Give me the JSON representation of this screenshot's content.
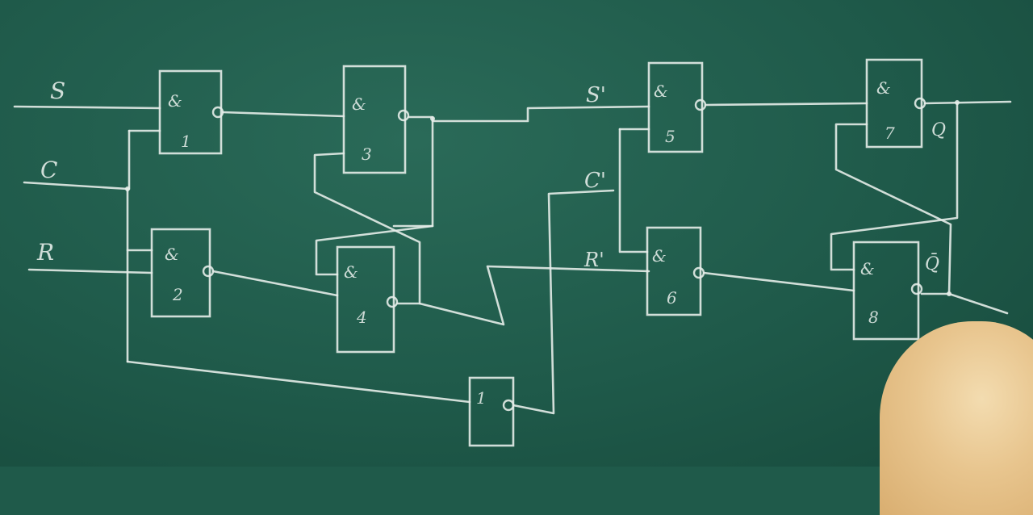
{
  "inputs": {
    "s": "S",
    "c": "C",
    "r": "R"
  },
  "internal": {
    "s_prime": "S'",
    "c_prime": "C'",
    "r_prime": "R'"
  },
  "outputs": {
    "q": "Q",
    "q_bar": "Q̄"
  },
  "gates": [
    {
      "id": "1",
      "op": "&"
    },
    {
      "id": "2",
      "op": "&"
    },
    {
      "id": "3",
      "op": "&"
    },
    {
      "id": "4",
      "op": "&"
    },
    {
      "id": "5",
      "op": "&"
    },
    {
      "id": "6",
      "op": "&"
    },
    {
      "id": "7",
      "op": "&"
    },
    {
      "id": "8",
      "op": "&"
    },
    {
      "id": "",
      "op": "1"
    }
  ],
  "colors": {
    "board": "#1f5a4a",
    "chalk": "#e4ece8",
    "hair": "#e8c58e"
  }
}
